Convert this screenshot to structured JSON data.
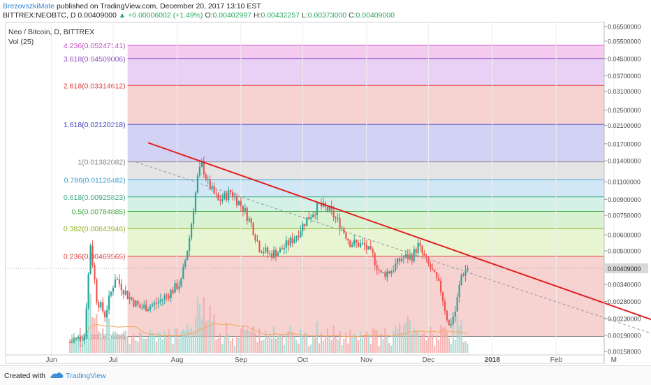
{
  "header": {
    "author": "BrezovszkiMate",
    "published": "published on TradingView.com, December 20, 2017 13:10 EST",
    "symbol": "BITTREX:NEOBTC, D",
    "price": "0.00409000",
    "change_arrow": "▲",
    "change": "+0.00006002 (+1.49%)",
    "o_label": "O:",
    "o": "0.00402997",
    "h_label": "H:",
    "h": "0.00432257",
    "l_label": "L:",
    "l": "0.00373000",
    "c_label": "C:",
    "c": "0.00409000"
  },
  "footer": {
    "created_with": "Created with",
    "brand": "TradingView"
  },
  "colors": {
    "up": "#26a69a",
    "down": "#ef5350",
    "trendline": "#e02020",
    "vol_ma": "#f2a65a"
  },
  "chart_data": {
    "type": "candlestick",
    "title": "Neo / Bitcoin, D, BITTREX",
    "legend": [
      "Vol (25)"
    ],
    "x_ticks": [
      "Jun",
      "Jul",
      "Aug",
      "Sep",
      "Oct",
      "Nov",
      "Dec",
      "2018",
      "Feb",
      "M"
    ],
    "y_ticks": [
      "0.06500000",
      "0.05500000",
      "0.04500000",
      "0.03700000",
      "0.03100000",
      "0.02500000",
      "0.02100000",
      "0.01700000",
      "0.01400000",
      "0.01100000",
      "0.00900000",
      "0.00750000",
      "0.00600000",
      "0.00500000",
      "0.00340000",
      "0.00280000",
      "0.00230000",
      "0.00190000",
      "0.00158000"
    ],
    "y_scale": "log",
    "last_price_label": "0.00409000",
    "fib_levels": [
      {
        "label": "4.236(0.05247141)",
        "value": 0.05247141,
        "color": "#c050c0",
        "fill": "#f3c8ee"
      },
      {
        "label": "3.618(0.04509006)",
        "value": 0.04509006,
        "color": "#9050c0",
        "fill": "#e7cff4"
      },
      {
        "label": "2.618(0.03314612)",
        "value": 0.03314612,
        "color": "#e04040",
        "fill": "#f5d0cf"
      },
      {
        "label": "1.618(0.02120218)",
        "value": 0.02120218,
        "color": "#4040c0",
        "fill": "#d0d0f4"
      },
      {
        "label": "1(0.01382082)",
        "value": 0.01382082,
        "color": "#888888",
        "fill": "#e3e3e3"
      },
      {
        "label": "0.786(0.01126482)",
        "value": 0.01126482,
        "color": "#3c9fd0",
        "fill": "#d0e6f5"
      },
      {
        "label": "0.618(0.00925823)",
        "value": 0.00925823,
        "color": "#38a880",
        "fill": "#d2f0e6"
      },
      {
        "label": "0.5(0.00784885)",
        "value": 0.00784885,
        "color": "#40a840",
        "fill": "#d7f2d0"
      },
      {
        "label": "0.382(0.00643946)",
        "value": 0.00643946,
        "color": "#90b020",
        "fill": "#e7f4d0"
      },
      {
        "label": "0.236(0.00469565)",
        "value": 0.00469565,
        "color": "#e04040",
        "fill": "#f5d0cf"
      },
      {
        "label": "0(0.00187688)",
        "value": 0.00187688,
        "color": "#888888",
        "fill": ""
      }
    ],
    "trendline": {
      "start": {
        "date": "2017-07-18",
        "price": 0.0172
      },
      "end": {
        "date": "2018-03-20",
        "price": 0.00226
      }
    },
    "dashed_line": {
      "start": {
        "date": "2017-07-12",
        "price": 0.0138
      },
      "end": {
        "date": "2018-03-20",
        "price": 0.00193
      }
    },
    "price_keypoints": [
      [
        "2017-06-10",
        0.00175
      ],
      [
        "2017-06-17",
        0.0019
      ],
      [
        "2017-06-20",
        0.0054
      ],
      [
        "2017-06-23",
        0.0029
      ],
      [
        "2017-06-27",
        0.0024
      ],
      [
        "2017-07-02",
        0.0037
      ],
      [
        "2017-07-08",
        0.003
      ],
      [
        "2017-07-14",
        0.0026
      ],
      [
        "2017-07-21",
        0.0027
      ],
      [
        "2017-07-27",
        0.003
      ],
      [
        "2017-08-03",
        0.0035
      ],
      [
        "2017-08-07",
        0.0058
      ],
      [
        "2017-08-11",
        0.0115
      ],
      [
        "2017-08-13",
        0.0135
      ],
      [
        "2017-08-16",
        0.0108
      ],
      [
        "2017-08-21",
        0.0088
      ],
      [
        "2017-08-27",
        0.0098
      ],
      [
        "2017-09-02",
        0.0082
      ],
      [
        "2017-09-06",
        0.0068
      ],
      [
        "2017-09-10",
        0.0052
      ],
      [
        "2017-09-15",
        0.0048
      ],
      [
        "2017-09-20",
        0.005
      ],
      [
        "2017-09-27",
        0.0058
      ],
      [
        "2017-10-03",
        0.0072
      ],
      [
        "2017-10-09",
        0.0084
      ],
      [
        "2017-10-14",
        0.0079
      ],
      [
        "2017-10-19",
        0.0068
      ],
      [
        "2017-10-24",
        0.0055
      ],
      [
        "2017-10-31",
        0.0053
      ],
      [
        "2017-11-04",
        0.0047
      ],
      [
        "2017-11-08",
        0.0038
      ],
      [
        "2017-11-13",
        0.004
      ],
      [
        "2017-11-18",
        0.0046
      ],
      [
        "2017-11-23",
        0.0047
      ],
      [
        "2017-11-26",
        0.0053
      ],
      [
        "2017-11-29",
        0.0046
      ],
      [
        "2017-12-03",
        0.0039
      ],
      [
        "2017-12-07",
        0.0032
      ],
      [
        "2017-12-11",
        0.0021
      ],
      [
        "2017-12-14",
        0.0025
      ],
      [
        "2017-12-17",
        0.0038
      ],
      [
        "2017-12-20",
        0.00409
      ]
    ]
  }
}
